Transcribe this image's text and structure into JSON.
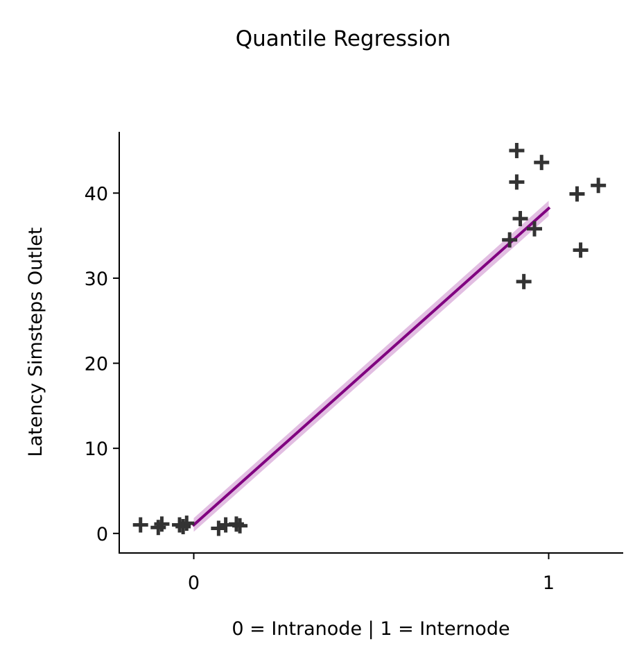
{
  "chart_data": {
    "type": "scatter",
    "title": "Quantile Regression",
    "xlabel": "0 = Intranode | 1 = Internode",
    "ylabel": "Latency Simsteps Outlet",
    "xlim": [
      -0.21,
      1.21
    ],
    "ylim": [
      -2.3,
      47.2
    ],
    "xticks": [
      0,
      1
    ],
    "xtick_labels": [
      "0",
      "1"
    ],
    "yticks": [
      0,
      10,
      20,
      30,
      40
    ],
    "ytick_labels": [
      "0",
      "10",
      "20",
      "30",
      "40"
    ],
    "grid": false,
    "marker": "+",
    "colors": {
      "points": "#333333",
      "fit_line": "#800080",
      "fit_band": "#d8a8d8"
    },
    "points": [
      {
        "x": -0.15,
        "y": 1.0
      },
      {
        "x": -0.1,
        "y": 0.7
      },
      {
        "x": -0.09,
        "y": 1.1
      },
      {
        "x": -0.04,
        "y": 1.0
      },
      {
        "x": -0.03,
        "y": 0.8
      },
      {
        "x": -0.02,
        "y": 1.2
      },
      {
        "x": 0.07,
        "y": 0.6
      },
      {
        "x": 0.09,
        "y": 1.0
      },
      {
        "x": 0.12,
        "y": 1.1
      },
      {
        "x": 0.13,
        "y": 0.9
      },
      {
        "x": 0.91,
        "y": 45.0
      },
      {
        "x": 0.91,
        "y": 41.3
      },
      {
        "x": 0.98,
        "y": 43.6
      },
      {
        "x": 0.92,
        "y": 37.0
      },
      {
        "x": 0.89,
        "y": 34.5
      },
      {
        "x": 0.96,
        "y": 35.8
      },
      {
        "x": 0.93,
        "y": 29.6
      },
      {
        "x": 1.08,
        "y": 39.9
      },
      {
        "x": 1.14,
        "y": 40.9
      },
      {
        "x": 1.09,
        "y": 33.3
      }
    ],
    "fit": {
      "x": [
        0,
        1
      ],
      "y": [
        1.0,
        38.2
      ],
      "band_lower": [
        0.2,
        37.3
      ],
      "band_upper": [
        1.8,
        39.1
      ]
    }
  }
}
